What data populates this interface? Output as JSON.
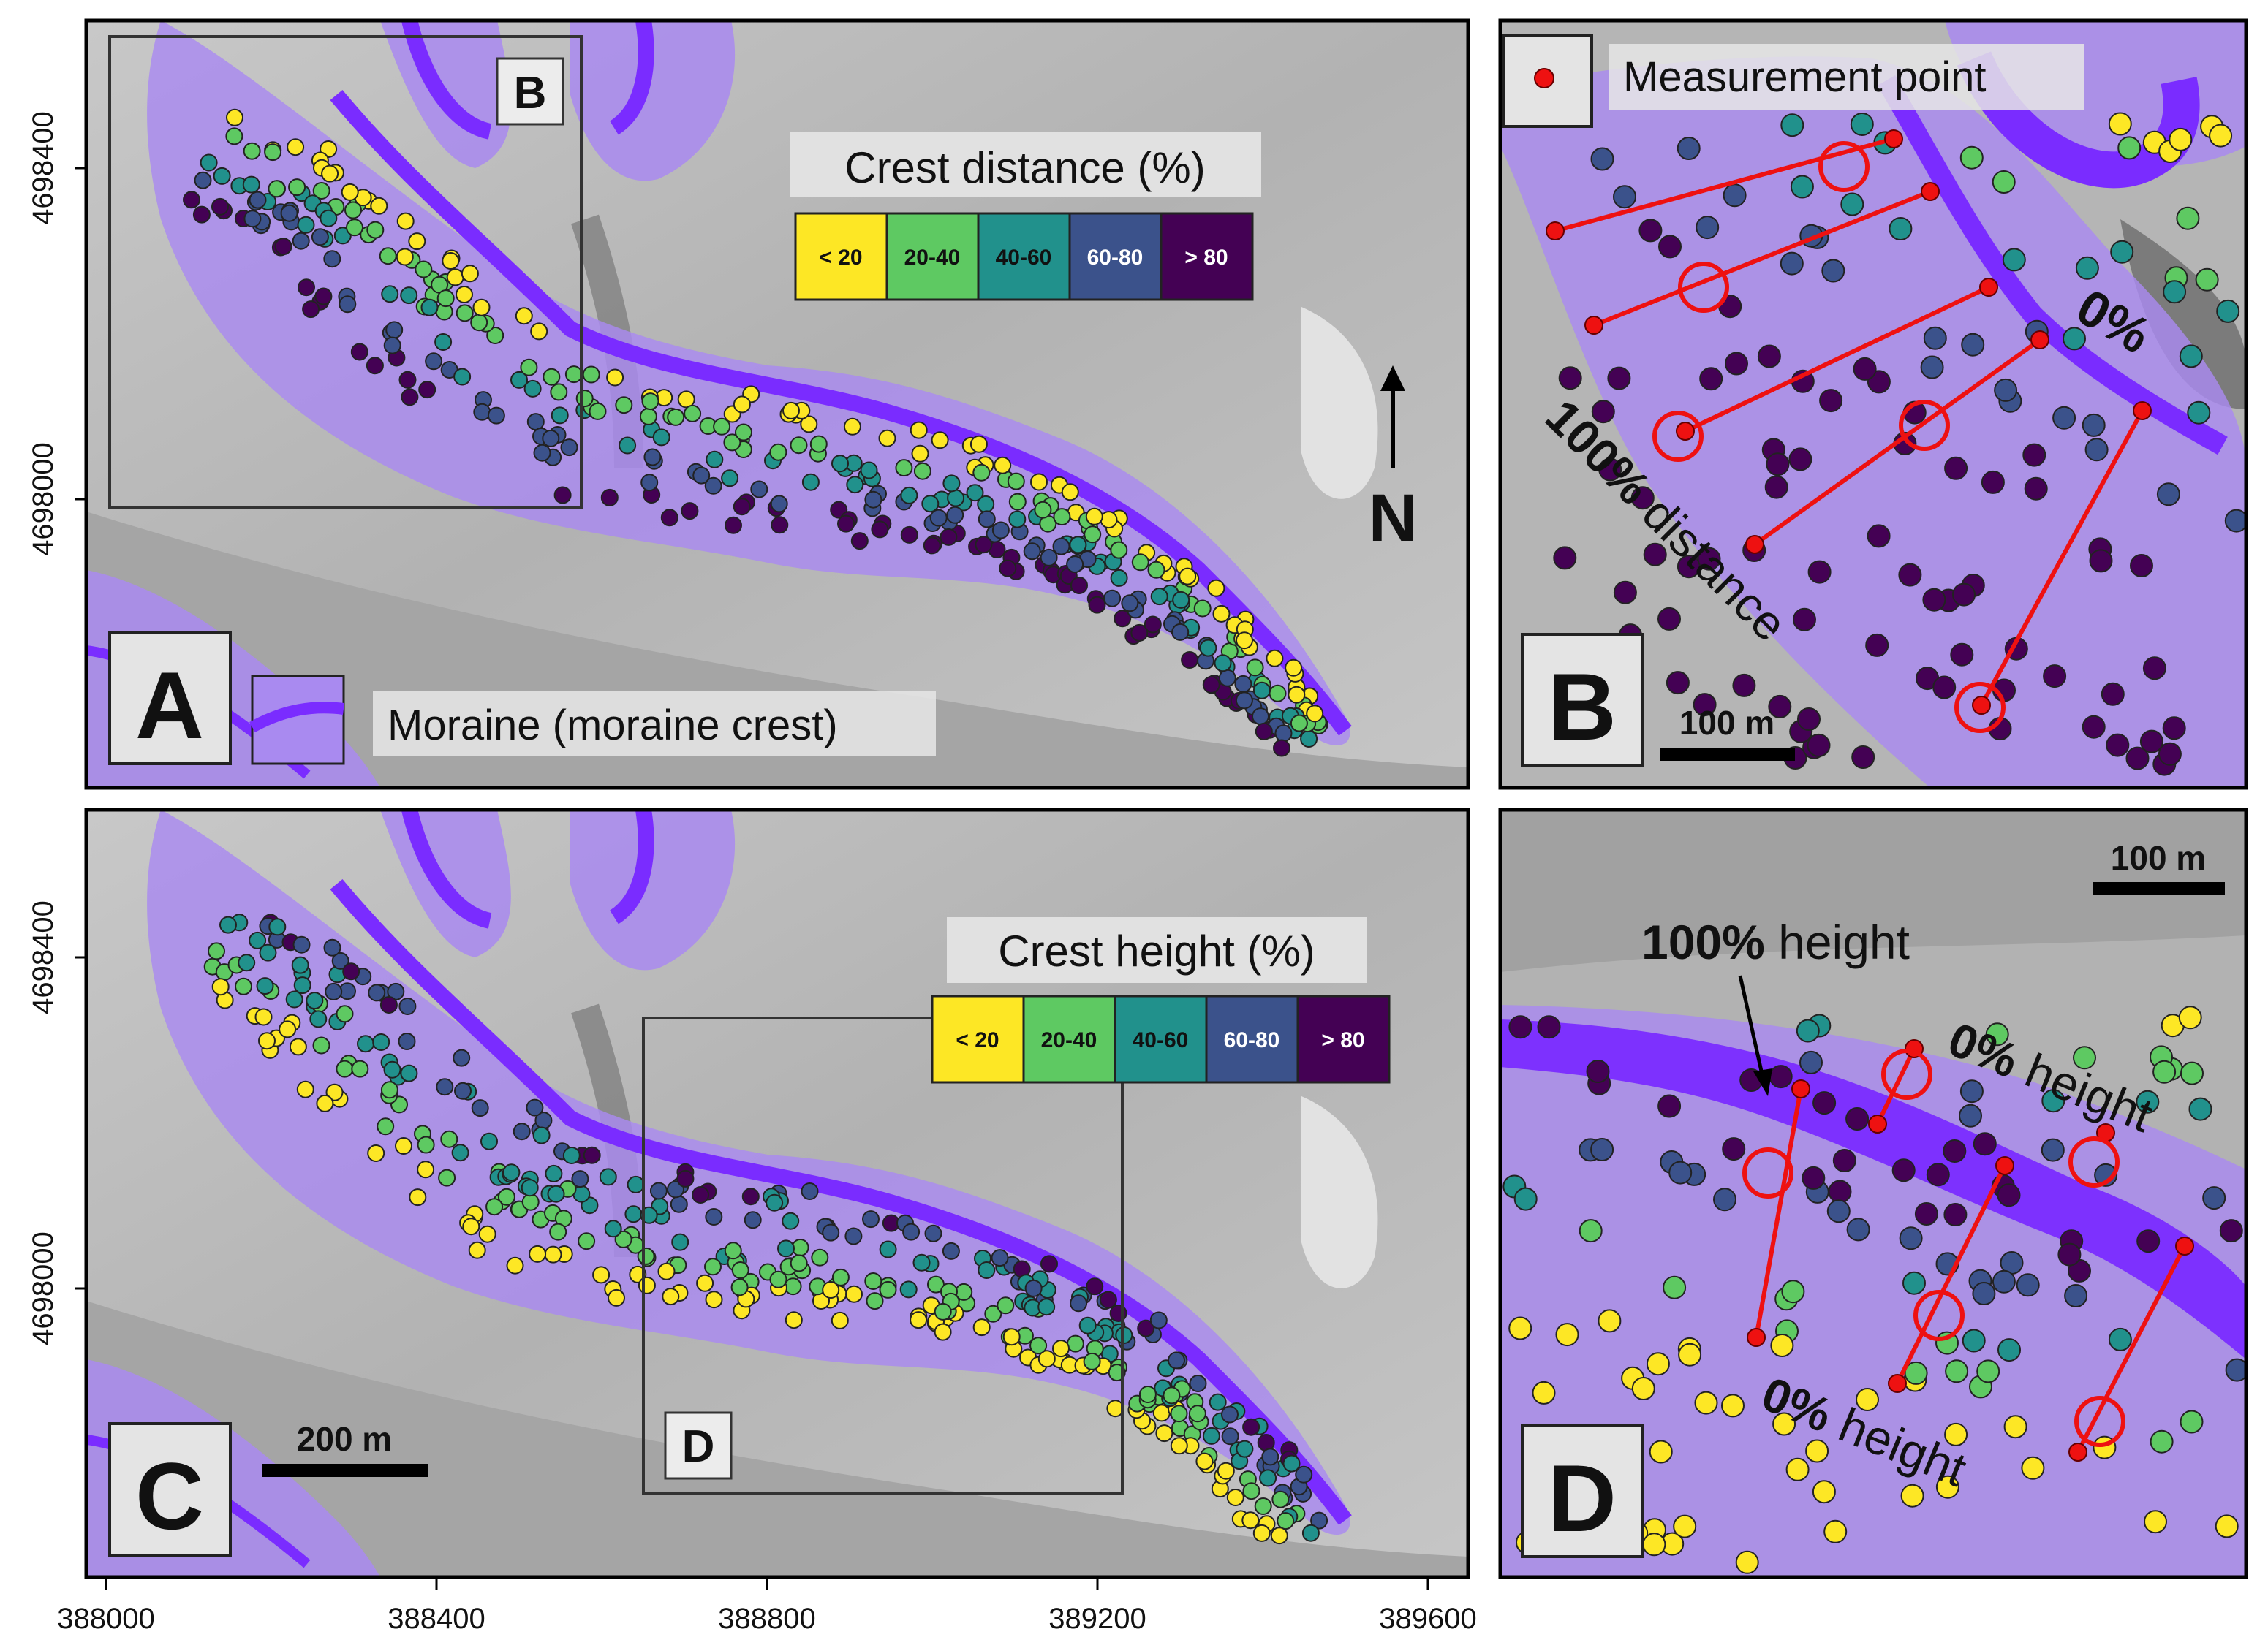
{
  "axes": {
    "x_ticks": [
      "388000",
      "388400",
      "388800",
      "389200",
      "389600"
    ],
    "y_ticks_top": [
      "4698400",
      "4698000"
    ],
    "y_ticks_bottom": [
      "4698400",
      "4698000"
    ]
  },
  "panels": {
    "a": {
      "letter": "A",
      "inset_letter": "B",
      "legend_title": "Crest distance (%)",
      "legend_bins": [
        "< 20",
        "20-40",
        "40-60",
        "60-80",
        "> 80"
      ],
      "moraine_label": "Moraine (moraine crest)",
      "north": "N"
    },
    "b": {
      "letter": "B",
      "measurement_label": "Measurement point",
      "label_zero": "0%",
      "label_hundred_bold": "100%",
      "label_hundred_rest": " distance",
      "scale": "100 m"
    },
    "c": {
      "letter": "C",
      "inset_letter": "D",
      "legend_title": "Crest height (%)",
      "legend_bins": [
        "< 20",
        "20-40",
        "40-60",
        "60-80",
        "> 80"
      ],
      "scale": "200 m"
    },
    "d": {
      "letter": "D",
      "scale": "100 m",
      "label_top_bold": "100%",
      "label_top_rest": " height",
      "label_right_bold": "0%",
      "label_right_rest": " height",
      "label_bottom_bold": "0%",
      "label_bottom_rest": " height"
    }
  },
  "colors": {
    "bin_lt20": "#fde725",
    "bin_20_40": "#5ec962",
    "bin_40_60": "#21918c",
    "bin_60_80": "#3b528b",
    "bin_gt80": "#440154",
    "moraine_fill": "#a98af0",
    "crest": "#7a2cff",
    "marker": "#ee1111",
    "relief_bg": "#b8b8b8"
  },
  "icons": {
    "north_arrow": "north-arrow-icon",
    "measurement": "red-dot-icon"
  }
}
